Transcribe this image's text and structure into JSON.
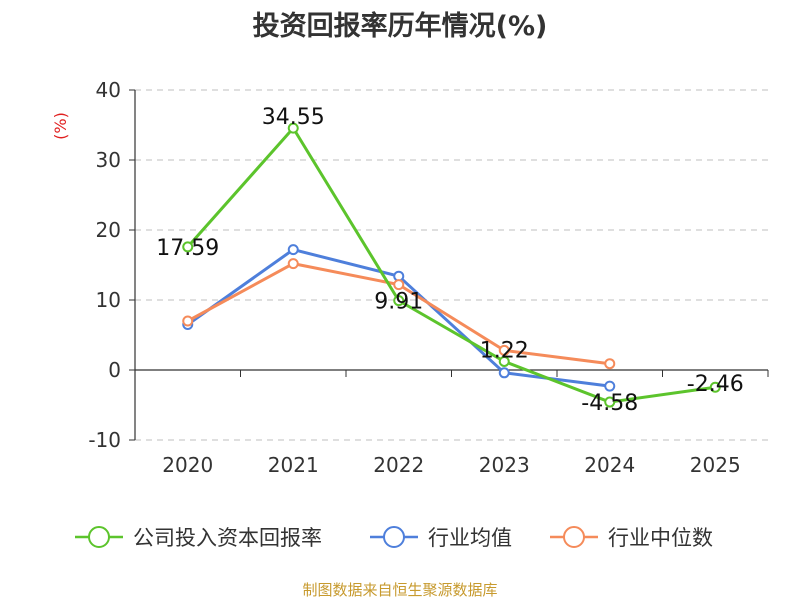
{
  "chart_data": {
    "type": "line",
    "title": "投资回报率历年情况(%)",
    "ylabel": "(%)",
    "xlabel": "",
    "categories": [
      "2020",
      "2021",
      "2022",
      "2023",
      "2024",
      "2025"
    ],
    "ylim": [
      -10,
      40
    ],
    "yticks": [
      40,
      30,
      20,
      10,
      0,
      -10
    ],
    "grid": true,
    "legend_position": "bottom",
    "series": [
      {
        "name": "公司投入资本回报率",
        "color": "#5cc42c",
        "values": [
          17.59,
          34.55,
          9.91,
          1.22,
          -4.58,
          -2.46
        ],
        "labels": [
          "17.59",
          "34.55",
          "9.91",
          "1.22",
          "-4.58",
          "-2.46"
        ]
      },
      {
        "name": "行业均值",
        "color": "#4e7fdb",
        "values": [
          6.5,
          17.2,
          13.4,
          -0.4,
          -2.3,
          null
        ]
      },
      {
        "name": "行业中位数",
        "color": "#f58b5a",
        "values": [
          7.0,
          15.2,
          12.2,
          2.8,
          0.9,
          null
        ]
      }
    ]
  },
  "source_note": "制图数据来自恒生聚源数据库"
}
